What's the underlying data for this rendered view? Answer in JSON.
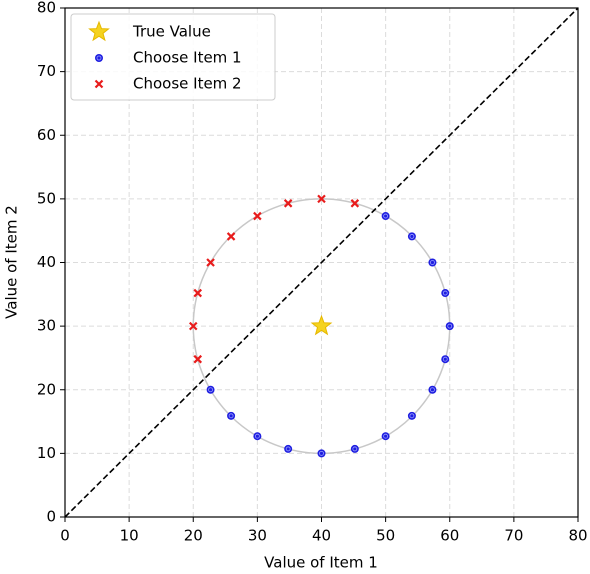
{
  "chart_data": {
    "type": "scatter",
    "xlabel": "Value of Item 1",
    "ylabel": "Value of Item 2",
    "xlim": [
      0,
      80
    ],
    "ylim": [
      0,
      80
    ],
    "xticks": [
      0,
      10,
      20,
      30,
      40,
      50,
      60,
      70,
      80
    ],
    "yticks": [
      0,
      10,
      20,
      30,
      40,
      50,
      60,
      70,
      80
    ],
    "grid": true,
    "legend": "upper left",
    "reference_circle": {
      "center": [
        40,
        30
      ],
      "radius": 20,
      "color": "#c8c8c8"
    },
    "diagonal": {
      "color": "#000000"
    },
    "series": [
      {
        "name": "True Value",
        "color": "#f5d31f",
        "marker": "star",
        "x": [
          40
        ],
        "y": [
          30
        ]
      },
      {
        "name": "Choose Item 1",
        "color": "#1f1fe0",
        "marker": "circle",
        "x": [
          50,
          54.1,
          57.3,
          59.3,
          60,
          59.3,
          57.3,
          54.1,
          50,
          45.2,
          40,
          34.8,
          30,
          25.9,
          22.7
        ],
        "y": [
          47.3,
          44.1,
          40,
          35.2,
          30,
          24.8,
          20,
          15.9,
          12.7,
          10.7,
          10,
          10.7,
          12.7,
          15.9,
          20
        ]
      },
      {
        "name": "Choose Item 2",
        "color": "#e81c1c",
        "marker": "x",
        "x": [
          20.7,
          20,
          20.7,
          22.7,
          25.9,
          30,
          34.8,
          40,
          45.2
        ],
        "y": [
          24.8,
          30,
          35.2,
          40,
          44.1,
          47.3,
          49.3,
          50,
          49.3
        ]
      }
    ]
  }
}
